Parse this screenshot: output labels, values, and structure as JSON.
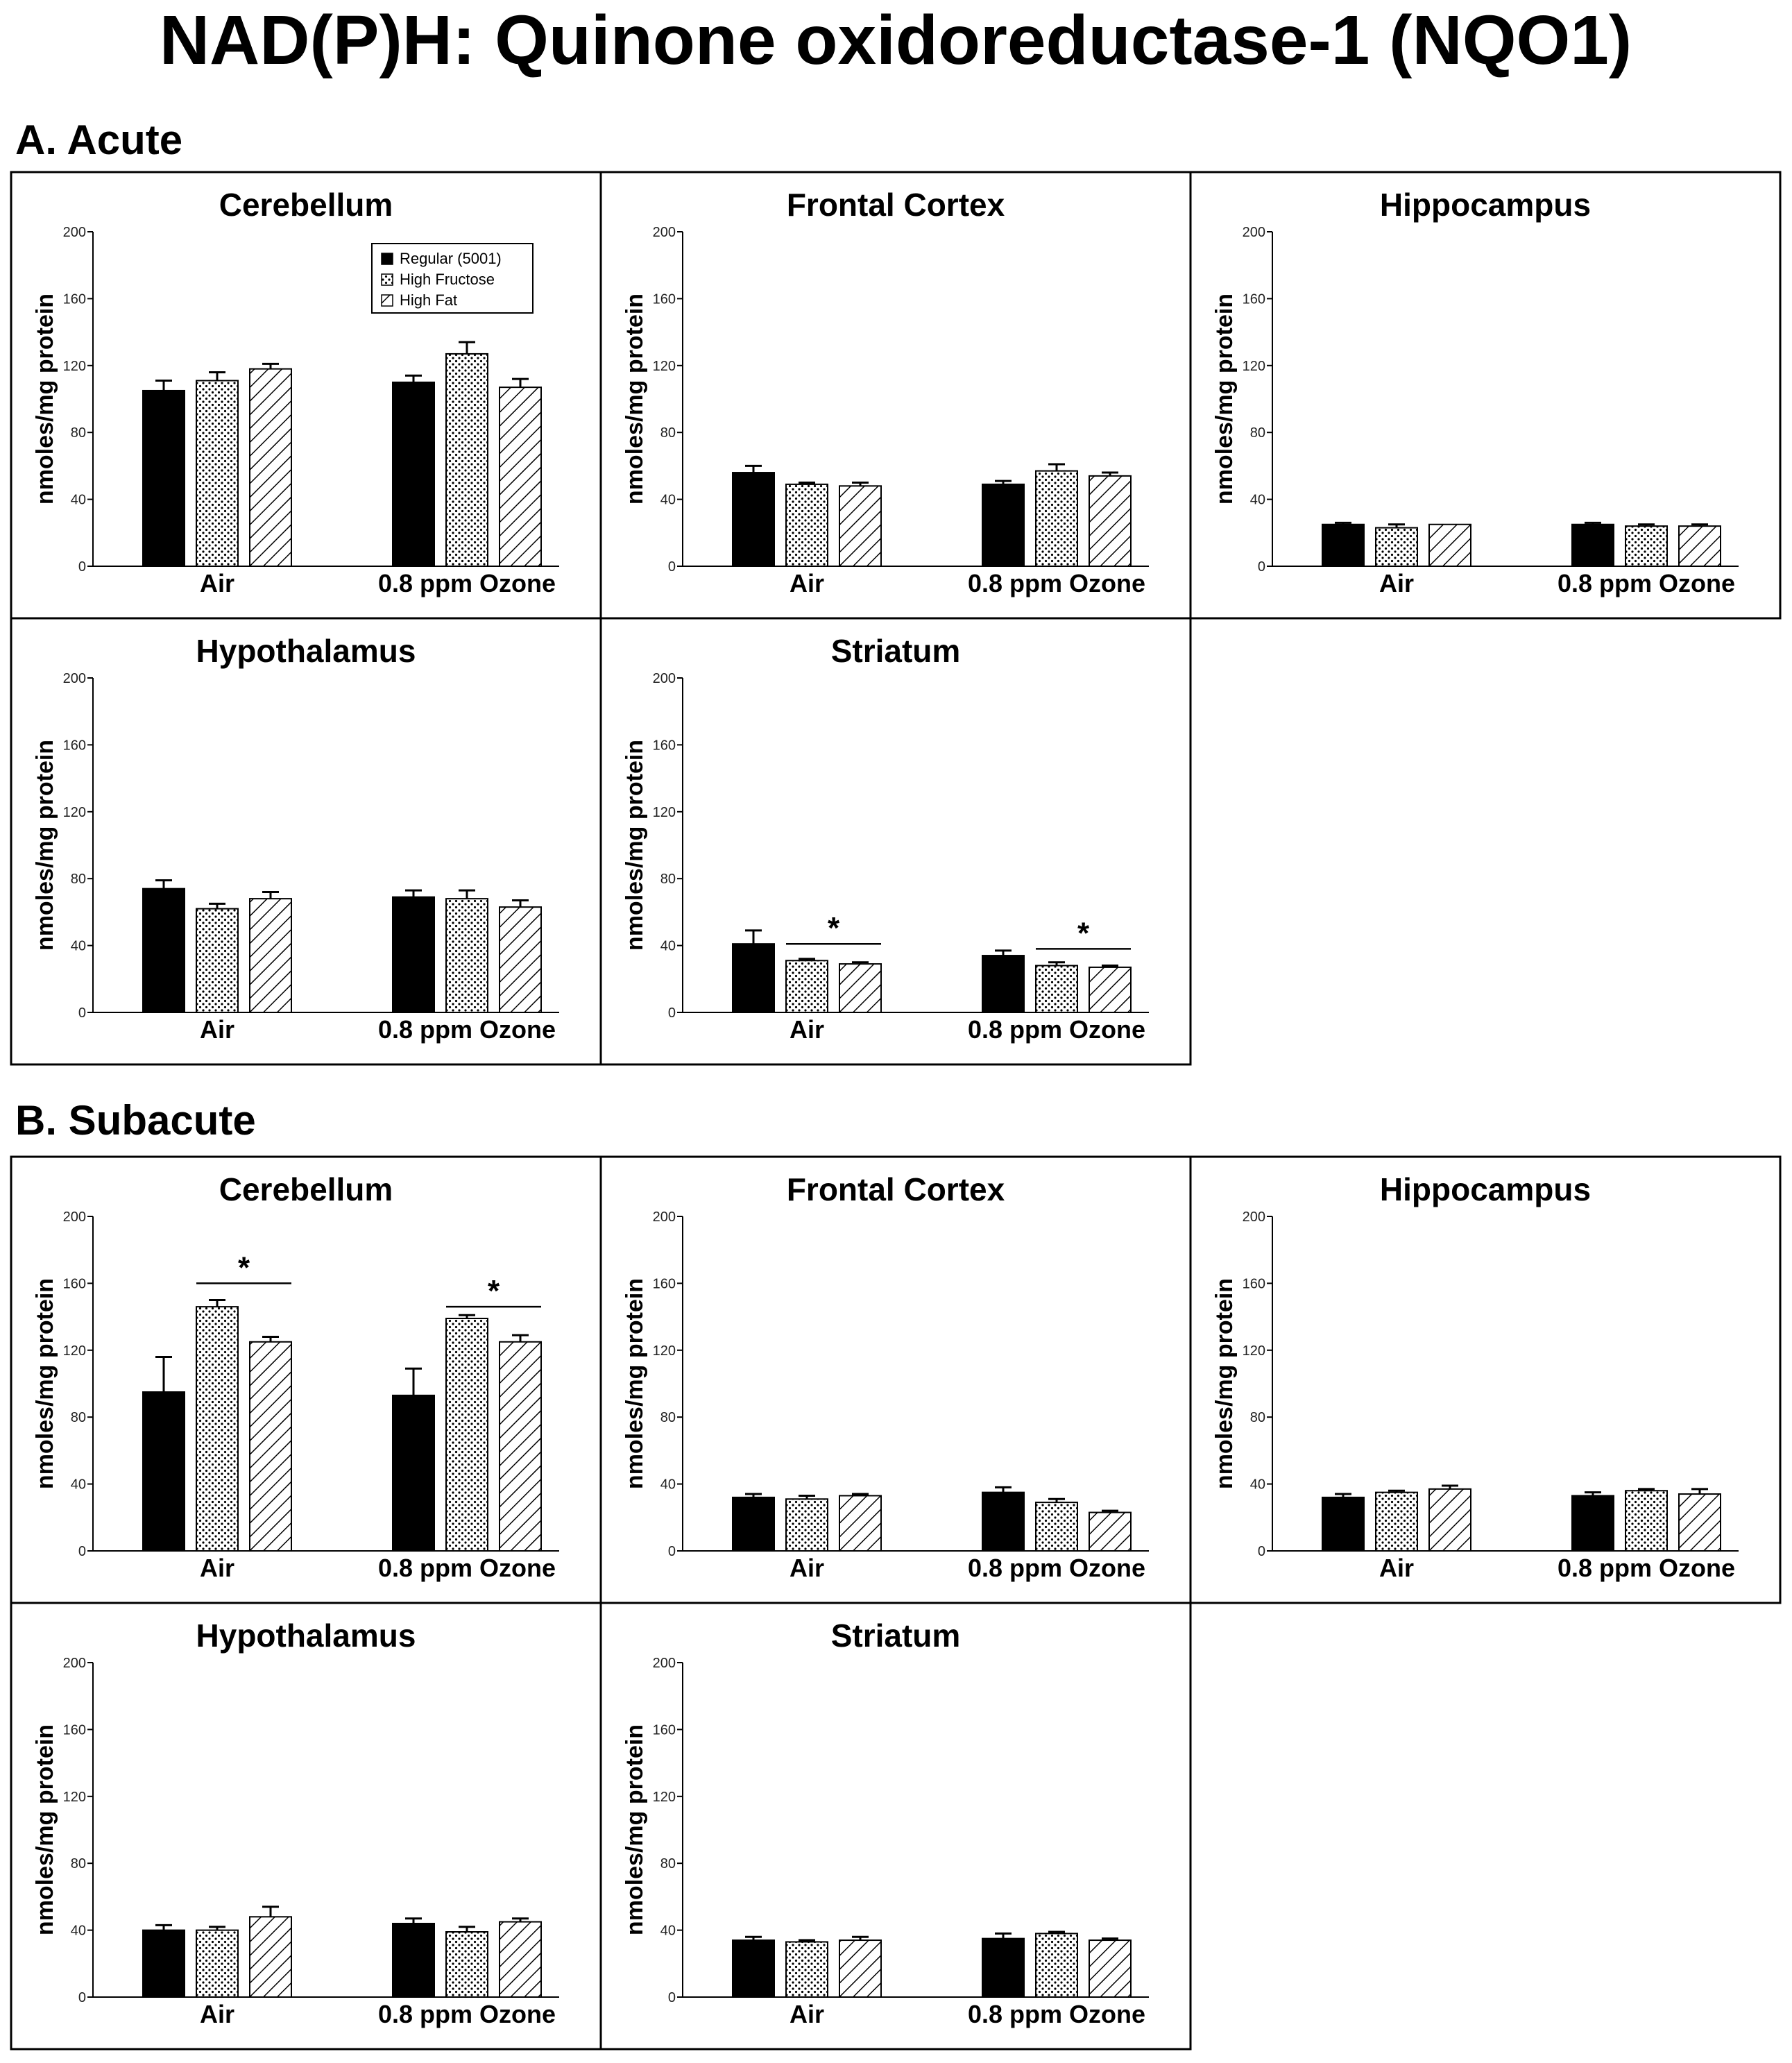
{
  "title": "NAD(P)H: Quinone oxidoreductase-1 (NQO1)",
  "colors": {
    "regular": "#000000",
    "frame": "#000000",
    "background": "#ffffff"
  },
  "legend": [
    {
      "key": "regular",
      "label": "Regular (5001)",
      "pattern": "solid-black"
    },
    {
      "key": "fructose",
      "label": "High Fructose",
      "pattern": "dotted"
    },
    {
      "key": "fat",
      "label": "High Fat",
      "pattern": "diagonal-hatch"
    }
  ],
  "sections": [
    {
      "id": "A",
      "label": "A. Acute"
    },
    {
      "id": "B",
      "label": "B. Subacute"
    }
  ],
  "chart_data": [
    {
      "section": "A",
      "title": "Cerebellum",
      "type": "bar",
      "ylabel": "nmoles/mg protein",
      "ylim": [
        0,
        200
      ],
      "yticks": [
        0,
        40,
        80,
        120,
        160,
        200
      ],
      "categories": [
        "Air",
        "0.8 ppm Ozone"
      ],
      "legend": true,
      "series": [
        {
          "name": "Regular (5001)",
          "values": [
            105,
            110
          ],
          "errors": [
            6,
            4
          ]
        },
        {
          "name": "High Fructose",
          "values": [
            111,
            127
          ],
          "errors": [
            5,
            7
          ]
        },
        {
          "name": "High Fat",
          "values": [
            118,
            107
          ],
          "errors": [
            3,
            5
          ]
        }
      ],
      "significance": []
    },
    {
      "section": "A",
      "title": "Frontal Cortex",
      "type": "bar",
      "ylabel": "nmoles/mg protein",
      "ylim": [
        0,
        200
      ],
      "yticks": [
        0,
        40,
        80,
        120,
        160,
        200
      ],
      "categories": [
        "Air",
        "0.8 ppm Ozone"
      ],
      "series": [
        {
          "name": "Regular (5001)",
          "values": [
            56,
            49
          ],
          "errors": [
            4,
            2
          ]
        },
        {
          "name": "High Fructose",
          "values": [
            49,
            57
          ],
          "errors": [
            1,
            4
          ]
        },
        {
          "name": "High Fat",
          "values": [
            48,
            54
          ],
          "errors": [
            2,
            2
          ]
        }
      ],
      "significance": []
    },
    {
      "section": "A",
      "title": "Hippocampus",
      "type": "bar",
      "ylabel": "nmoles/mg protein",
      "ylim": [
        0,
        200
      ],
      "yticks": [
        0,
        40,
        80,
        120,
        160,
        200
      ],
      "categories": [
        "Air",
        "0.8 ppm Ozone"
      ],
      "series": [
        {
          "name": "Regular (5001)",
          "values": [
            25,
            25
          ],
          "errors": [
            1,
            1
          ]
        },
        {
          "name": "High Fructose",
          "values": [
            23,
            24
          ],
          "errors": [
            2,
            1
          ]
        },
        {
          "name": "High Fat",
          "values": [
            25,
            24
          ],
          "errors": [
            0,
            1
          ]
        }
      ],
      "significance": []
    },
    {
      "section": "A",
      "title": "Hypothalamus",
      "type": "bar",
      "ylabel": "nmoles/mg protein",
      "ylim": [
        0,
        200
      ],
      "yticks": [
        0,
        40,
        80,
        120,
        160,
        200
      ],
      "categories": [
        "Air",
        "0.8 ppm Ozone"
      ],
      "series": [
        {
          "name": "Regular (5001)",
          "values": [
            74,
            69
          ],
          "errors": [
            5,
            4
          ]
        },
        {
          "name": "High Fructose",
          "values": [
            62,
            68
          ],
          "errors": [
            3,
            5
          ]
        },
        {
          "name": "High Fat",
          "values": [
            68,
            63
          ],
          "errors": [
            4,
            4
          ]
        }
      ],
      "significance": []
    },
    {
      "section": "A",
      "title": "Striatum",
      "type": "bar",
      "ylabel": "nmoles/mg protein",
      "ylim": [
        0,
        200
      ],
      "yticks": [
        0,
        40,
        80,
        120,
        160,
        200
      ],
      "categories": [
        "Air",
        "0.8 ppm Ozone"
      ],
      "series": [
        {
          "name": "Regular (5001)",
          "values": [
            41,
            34
          ],
          "errors": [
            8,
            3
          ]
        },
        {
          "name": "High Fructose",
          "values": [
            31,
            28
          ],
          "errors": [
            1,
            2
          ]
        },
        {
          "name": "High Fat",
          "values": [
            29,
            27
          ],
          "errors": [
            1,
            1
          ]
        }
      ],
      "significance": [
        {
          "category": 0,
          "from_series": 1,
          "to_series": 2,
          "at": 41,
          "label": "*"
        },
        {
          "category": 1,
          "from_series": 1,
          "to_series": 2,
          "at": 38,
          "label": "*"
        }
      ]
    },
    {
      "section": "B",
      "title": "Cerebellum",
      "type": "bar",
      "ylabel": "nmoles/mg protein",
      "ylim": [
        0,
        200
      ],
      "yticks": [
        0,
        40,
        80,
        120,
        160,
        200
      ],
      "categories": [
        "Air",
        "0.8 ppm Ozone"
      ],
      "series": [
        {
          "name": "Regular (5001)",
          "values": [
            95,
            93
          ],
          "errors": [
            21,
            16
          ]
        },
        {
          "name": "High Fructose",
          "values": [
            146,
            139
          ],
          "errors": [
            4,
            2
          ]
        },
        {
          "name": "High Fat",
          "values": [
            125,
            125
          ],
          "errors": [
            3,
            4
          ]
        }
      ],
      "significance": [
        {
          "category": 0,
          "from_series": 1,
          "to_series": 2,
          "at": 160,
          "label": "*"
        },
        {
          "category": 1,
          "from_series": 1,
          "to_series": 2,
          "at": 146,
          "label": "*"
        }
      ]
    },
    {
      "section": "B",
      "title": "Frontal Cortex",
      "type": "bar",
      "ylabel": "nmoles/mg protein",
      "ylim": [
        0,
        200
      ],
      "yticks": [
        0,
        40,
        80,
        120,
        160,
        200
      ],
      "categories": [
        "Air",
        "0.8 ppm Ozone"
      ],
      "series": [
        {
          "name": "Regular (5001)",
          "values": [
            32,
            35
          ],
          "errors": [
            2,
            3
          ]
        },
        {
          "name": "High Fructose",
          "values": [
            31,
            29
          ],
          "errors": [
            2,
            2
          ]
        },
        {
          "name": "High Fat",
          "values": [
            33,
            23
          ],
          "errors": [
            1,
            1
          ]
        }
      ],
      "significance": []
    },
    {
      "section": "B",
      "title": "Hippocampus",
      "type": "bar",
      "ylabel": "nmoles/mg protein",
      "ylim": [
        0,
        200
      ],
      "yticks": [
        0,
        40,
        80,
        120,
        160,
        200
      ],
      "categories": [
        "Air",
        "0.8 ppm Ozone"
      ],
      "series": [
        {
          "name": "Regular (5001)",
          "values": [
            32,
            33
          ],
          "errors": [
            2,
            2
          ]
        },
        {
          "name": "High Fructose",
          "values": [
            35,
            36
          ],
          "errors": [
            1,
            1
          ]
        },
        {
          "name": "High Fat",
          "values": [
            37,
            34
          ],
          "errors": [
            2,
            3
          ]
        }
      ],
      "significance": []
    },
    {
      "section": "B",
      "title": "Hypothalamus",
      "type": "bar",
      "ylabel": "nmoles/mg protein",
      "ylim": [
        0,
        200
      ],
      "yticks": [
        0,
        40,
        80,
        120,
        160,
        200
      ],
      "categories": [
        "Air",
        "0.8 ppm Ozone"
      ],
      "series": [
        {
          "name": "Regular (5001)",
          "values": [
            40,
            44
          ],
          "errors": [
            3,
            3
          ]
        },
        {
          "name": "High Fructose",
          "values": [
            40,
            39
          ],
          "errors": [
            2,
            3
          ]
        },
        {
          "name": "High Fat",
          "values": [
            48,
            45
          ],
          "errors": [
            6,
            2
          ]
        }
      ],
      "significance": []
    },
    {
      "section": "B",
      "title": "Striatum",
      "type": "bar",
      "ylabel": "nmoles/mg protein",
      "ylim": [
        0,
        200
      ],
      "yticks": [
        0,
        40,
        80,
        120,
        160,
        200
      ],
      "categories": [
        "Air",
        "0.8 ppm Ozone"
      ],
      "series": [
        {
          "name": "Regular (5001)",
          "values": [
            34,
            35
          ],
          "errors": [
            2,
            3
          ]
        },
        {
          "name": "High Fructose",
          "values": [
            33,
            38
          ],
          "errors": [
            1,
            1
          ]
        },
        {
          "name": "High Fat",
          "values": [
            34,
            34
          ],
          "errors": [
            2,
            1
          ]
        }
      ],
      "significance": []
    }
  ]
}
